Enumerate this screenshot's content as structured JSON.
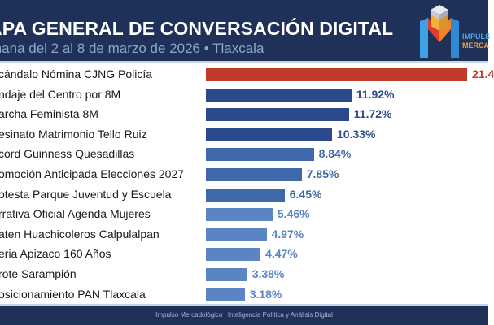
{
  "header": {
    "title": "APA GENERAL DE CONVERSACIÓN DIGITAL",
    "subtitle": "mana del 2 al 8 de marzo de 2026  •  Tlaxcala"
  },
  "logo": {
    "line1": "IMPULS",
    "line2": "MERCA",
    "icon": "impulso-logo-icon"
  },
  "footer": {
    "text": "Impulso Mercadológico  |  Inteligencia Política y Análisis Digital"
  },
  "colors": {
    "header_bg": "#1f3159",
    "highlight": "#c0392b",
    "tier1": "#2b4a8c",
    "tier2": "#3f69ab",
    "tier3": "#5b84c4"
  },
  "chart_data": {
    "type": "bar",
    "orientation": "horizontal",
    "title": "APA GENERAL DE CONVERSACIÓN DIGITAL",
    "subtitle": "mana del 2 al 8 de marzo de 2026 • Tlaxcala",
    "xlabel": "",
    "ylabel": "",
    "unit": "%",
    "grid": false,
    "xlim": [
      0,
      21.4
    ],
    "categories": [
      "cándalo Nómina CJNG Policía",
      "ndaje del Centro por 8M",
      "archa Feminista 8M",
      "esinato Matrimonio Tello Ruiz",
      "cord Guinness Quesadillas",
      "omoción Anticipada Elecciones 2027",
      "otesta Parque Juventud y Escuela",
      "rrativa Oficial Agenda Mujeres",
      "aten Huachicoleros Calpulalpan",
      "eria Apizaco 160 Años",
      "rote Sarampión",
      "osicionamiento PAN Tlaxcala"
    ],
    "values": [
      21.4,
      11.92,
      11.72,
      10.33,
      8.84,
      7.85,
      6.45,
      5.46,
      4.97,
      4.47,
      3.38,
      3.18
    ],
    "value_labels": [
      "21.4",
      "11.92%",
      "11.72%",
      "10.33%",
      "8.84%",
      "7.85%",
      "6.45%",
      "5.46%",
      "4.97%",
      "4.47%",
      "3.38%",
      "3.18%"
    ],
    "tiers": [
      "highlight",
      "tier1",
      "tier1",
      "tier1",
      "tier2",
      "tier2",
      "tier2",
      "tier3",
      "tier3",
      "tier3",
      "tier3",
      "tier3"
    ]
  }
}
